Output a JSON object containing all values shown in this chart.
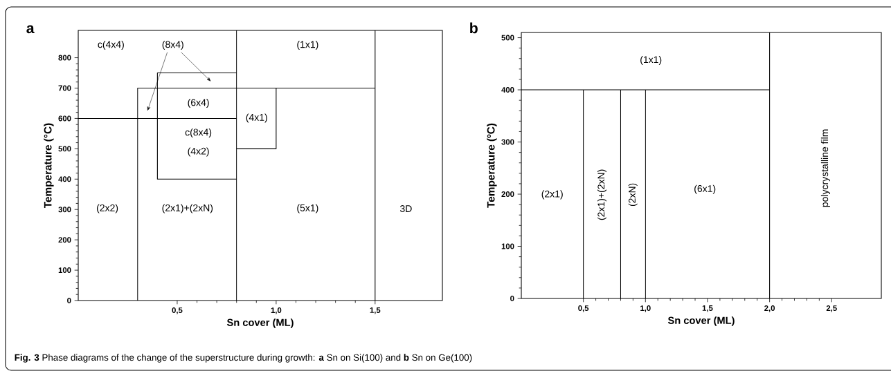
{
  "chart_data": [
    {
      "type": "line",
      "title": "a",
      "xlabel": "Sn cover (ML)",
      "ylabel": "Temperature (°C)",
      "xlim": [
        0,
        1.84
      ],
      "ylim": [
        0,
        890
      ],
      "xticks": [
        {
          "value": 0.5,
          "label": "0,5"
        },
        {
          "value": 1.0,
          "label": "1,0"
        },
        {
          "value": 1.5,
          "label": "1,5"
        }
      ],
      "yticks": [
        0,
        100,
        200,
        300,
        400,
        500,
        600,
        700,
        800
      ],
      "grid": false,
      "marker": "none",
      "line_style": "solid",
      "series": [
        {
          "color": "#000000",
          "x": [
            0,
            0.8
          ],
          "values": [
            600,
            600
          ]
        },
        {
          "color": "#000000",
          "x": [
            0.3,
            0.3,
            1.5
          ],
          "values": [
            0,
            700,
            700
          ]
        },
        {
          "color": "#000000",
          "x": [
            0.8,
            0.4,
            0.4,
            0.8
          ],
          "values": [
            750,
            750,
            400,
            400
          ]
        },
        {
          "color": "#000000",
          "x": [
            0.8,
            0.8
          ],
          "values": [
            0,
            890
          ]
        },
        {
          "color": "#000000",
          "x": [
            0.8,
            1.0,
            1.0
          ],
          "values": [
            500,
            500,
            700
          ]
        },
        {
          "color": "#000000",
          "x": [
            1.5,
            1.5
          ],
          "values": [
            0,
            890
          ]
        }
      ],
      "annotations": [
        "c(4x4)",
        "(8x4)",
        "(1x1)",
        "(6x4)",
        "(4x1)",
        "c(8x4)",
        "(4x2)",
        "(2x2)",
        "(2x1)+(2xN)",
        "(5x1)",
        "3D",
        "**Fig. 3** Phase diagrams of the change of the superstructure during growth: **a** Sn on Si(100) and **b** Sn on Ge(100)"
      ]
    },
    {
      "type": "line",
      "title": "b",
      "xlabel": "Sn cover (ML)",
      "ylabel": "Temperature (ºC)",
      "xlim": [
        0,
        2.9
      ],
      "ylim": [
        0,
        510
      ],
      "xticks": [
        {
          "value": 0.5,
          "label": "0,5"
        },
        {
          "value": 1.0,
          "label": "1,0"
        },
        {
          "value": 1.5,
          "label": "1,5"
        },
        {
          "value": 2.0,
          "label": "2,0"
        },
        {
          "value": 2.5,
          "label": "2,5"
        }
      ],
      "yticks": [
        0,
        100,
        200,
        300,
        400,
        500
      ],
      "grid": false,
      "marker": "none",
      "line_style": "solid",
      "series": [
        {
          "color": "#000000",
          "x": [
            0,
            2.0
          ],
          "values": [
            400,
            400
          ]
        },
        {
          "color": "#000000",
          "x": [
            0.5,
            0.5
          ],
          "values": [
            0,
            400
          ]
        },
        {
          "color": "#000000",
          "x": [
            0.8,
            0.8
          ],
          "values": [
            0,
            400
          ]
        },
        {
          "color": "#000000",
          "x": [
            1.0,
            1.0
          ],
          "values": [
            0,
            400
          ]
        },
        {
          "color": "#000000",
          "x": [
            2.0,
            2.0
          ],
          "values": [
            0,
            510
          ]
        }
      ],
      "annotations": [
        "(1x1)",
        "(2x1)",
        "(2x1)+(2xN)",
        "(2xN)",
        "(6x1)",
        "polycrystalline film"
      ]
    }
  ]
}
